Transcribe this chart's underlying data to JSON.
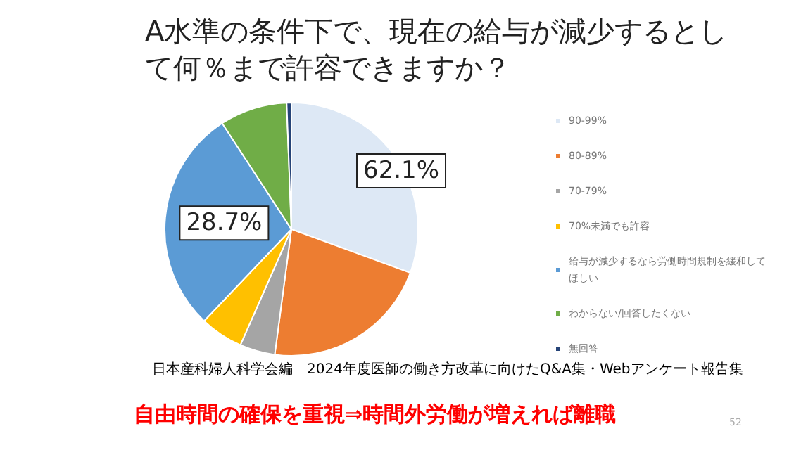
{
  "chart_data": {
    "type": "pie",
    "title": "A水準の条件下で、現在の給与が減少するとして何％まで許容できますか？",
    "categories": [
      "90-99%",
      "80-89%",
      "70-79%",
      "70%未満でも許容",
      "給与が減少するなら労働時間規制を緩和してほしい",
      "わからない/回答したくない",
      "無回答"
    ],
    "values": [
      30.6,
      21.5,
      4.5,
      5.5,
      28.7,
      8.6,
      0.6
    ],
    "colors": [
      "#dde8f5",
      "#ed7d31",
      "#a5a5a5",
      "#ffc000",
      "#5b9bd5",
      "#70ad47",
      "#264478"
    ],
    "value_labels": [
      null,
      null,
      null,
      null,
      "28.7%",
      null,
      null
    ],
    "legend": "right",
    "annotations": [
      "62.1%",
      "日本産科婦人科学会編　2024年度医師の働き方改革に向けたQ&A集・Webアンケート報告集",
      "自由時間の確保を重視⇒時間外労働が増えれば離職",
      "52"
    ]
  }
}
